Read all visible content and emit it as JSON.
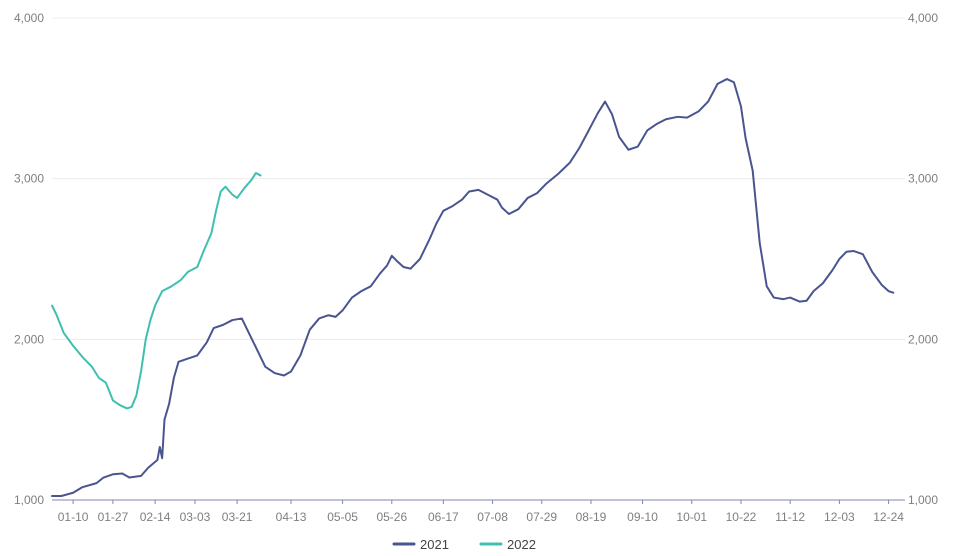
{
  "chart_data": {
    "type": "line",
    "x_axis_type": "day-of-year",
    "x_tick_labels": [
      "01-10",
      "01-27",
      "02-14",
      "03-03",
      "03-21",
      "04-13",
      "05-05",
      "05-26",
      "06-17",
      "07-08",
      "07-29",
      "08-19",
      "09-10",
      "10-01",
      "10-22",
      "11-12",
      "12-03",
      "12-24"
    ],
    "x_range": [
      "01-01",
      "12-31"
    ],
    "ylim": [
      1000,
      4000
    ],
    "y_ticks": [
      1000,
      2000,
      3000,
      4000
    ],
    "y_tick_labels": [
      "1,000",
      "2,000",
      "3,000",
      "4,000"
    ],
    "y_axis_left": true,
    "y_axis_right": true,
    "grid": "horizontal",
    "legend_position": "bottom-center",
    "series": [
      {
        "name": "2021",
        "color": "#4a5590",
        "points": [
          [
            "01-01",
            1025
          ],
          [
            "01-05",
            1025
          ],
          [
            "01-10",
            1045
          ],
          [
            "01-14",
            1080
          ],
          [
            "01-20",
            1105
          ],
          [
            "01-23",
            1140
          ],
          [
            "01-27",
            1160
          ],
          [
            "01-31",
            1165
          ],
          [
            "02-03",
            1140
          ],
          [
            "02-08",
            1150
          ],
          [
            "02-11",
            1200
          ],
          [
            "02-15",
            1250
          ],
          [
            "02-16",
            1330
          ],
          [
            "02-17",
            1260
          ],
          [
            "02-18",
            1500
          ],
          [
            "02-20",
            1600
          ],
          [
            "02-22",
            1760
          ],
          [
            "02-24",
            1860
          ],
          [
            "02-28",
            1880
          ],
          [
            "03-04",
            1900
          ],
          [
            "03-08",
            1980
          ],
          [
            "03-11",
            2070
          ],
          [
            "03-15",
            2090
          ],
          [
            "03-19",
            2120
          ],
          [
            "03-23",
            2130
          ],
          [
            "03-26",
            2040
          ],
          [
            "03-29",
            1950
          ],
          [
            "04-02",
            1830
          ],
          [
            "04-06",
            1790
          ],
          [
            "04-10",
            1775
          ],
          [
            "04-13",
            1800
          ],
          [
            "04-17",
            1900
          ],
          [
            "04-21",
            2060
          ],
          [
            "04-25",
            2130
          ],
          [
            "04-29",
            2150
          ],
          [
            "05-02",
            2140
          ],
          [
            "05-05",
            2180
          ],
          [
            "05-09",
            2260
          ],
          [
            "05-13",
            2300
          ],
          [
            "05-17",
            2330
          ],
          [
            "05-21",
            2410
          ],
          [
            "05-24",
            2460
          ],
          [
            "05-26",
            2520
          ],
          [
            "05-28",
            2490
          ],
          [
            "05-31",
            2450
          ],
          [
            "06-03",
            2440
          ],
          [
            "06-07",
            2500
          ],
          [
            "06-11",
            2620
          ],
          [
            "06-14",
            2720
          ],
          [
            "06-17",
            2800
          ],
          [
            "06-21",
            2830
          ],
          [
            "06-25",
            2870
          ],
          [
            "06-28",
            2920
          ],
          [
            "07-02",
            2930
          ],
          [
            "07-06",
            2900
          ],
          [
            "07-10",
            2870
          ],
          [
            "07-12",
            2820
          ],
          [
            "07-15",
            2780
          ],
          [
            "07-19",
            2810
          ],
          [
            "07-23",
            2880
          ],
          [
            "07-27",
            2910
          ],
          [
            "07-31",
            2970
          ],
          [
            "08-05",
            3030
          ],
          [
            "08-10",
            3100
          ],
          [
            "08-14",
            3190
          ],
          [
            "08-18",
            3300
          ],
          [
            "08-22",
            3410
          ],
          [
            "08-25",
            3480
          ],
          [
            "08-28",
            3400
          ],
          [
            "08-31",
            3260
          ],
          [
            "09-04",
            3180
          ],
          [
            "09-08",
            3200
          ],
          [
            "09-12",
            3300
          ],
          [
            "09-16",
            3340
          ],
          [
            "09-20",
            3370
          ],
          [
            "09-25",
            3385
          ],
          [
            "09-29",
            3380
          ],
          [
            "10-04",
            3420
          ],
          [
            "10-08",
            3480
          ],
          [
            "10-12",
            3590
          ],
          [
            "10-16",
            3620
          ],
          [
            "10-19",
            3600
          ],
          [
            "10-22",
            3450
          ],
          [
            "10-24",
            3250
          ],
          [
            "10-27",
            3050
          ],
          [
            "10-30",
            2600
          ],
          [
            "11-02",
            2330
          ],
          [
            "11-05",
            2260
          ],
          [
            "11-09",
            2250
          ],
          [
            "11-12",
            2260
          ],
          [
            "11-16",
            2235
          ],
          [
            "11-19",
            2240
          ],
          [
            "11-22",
            2300
          ],
          [
            "11-26",
            2350
          ],
          [
            "11-30",
            2430
          ],
          [
            "12-03",
            2500
          ],
          [
            "12-06",
            2545
          ],
          [
            "12-09",
            2550
          ],
          [
            "12-13",
            2530
          ],
          [
            "12-17",
            2420
          ],
          [
            "12-21",
            2340
          ],
          [
            "12-24",
            2300
          ],
          [
            "12-26",
            2290
          ]
        ]
      },
      {
        "name": "2022",
        "color": "#3fbfb0",
        "points": [
          [
            "01-01",
            2210
          ],
          [
            "01-03",
            2150
          ],
          [
            "01-06",
            2040
          ],
          [
            "01-10",
            1960
          ],
          [
            "01-14",
            1890
          ],
          [
            "01-18",
            1830
          ],
          [
            "01-21",
            1760
          ],
          [
            "01-24",
            1730
          ],
          [
            "01-27",
            1620
          ],
          [
            "01-30",
            1590
          ],
          [
            "02-02",
            1570
          ],
          [
            "02-04",
            1580
          ],
          [
            "02-06",
            1650
          ],
          [
            "02-08",
            1800
          ],
          [
            "02-10",
            2000
          ],
          [
            "02-12",
            2120
          ],
          [
            "02-14",
            2210
          ],
          [
            "02-17",
            2300
          ],
          [
            "02-21",
            2330
          ],
          [
            "02-25",
            2370
          ],
          [
            "02-28",
            2420
          ],
          [
            "03-04",
            2450
          ],
          [
            "03-07",
            2560
          ],
          [
            "03-10",
            2660
          ],
          [
            "03-12",
            2800
          ],
          [
            "03-14",
            2920
          ],
          [
            "03-16",
            2950
          ],
          [
            "03-19",
            2900
          ],
          [
            "03-21",
            2880
          ],
          [
            "03-24",
            2940
          ],
          [
            "03-27",
            2990
          ],
          [
            "03-29",
            3035
          ],
          [
            "03-31",
            3020
          ]
        ]
      }
    ]
  }
}
